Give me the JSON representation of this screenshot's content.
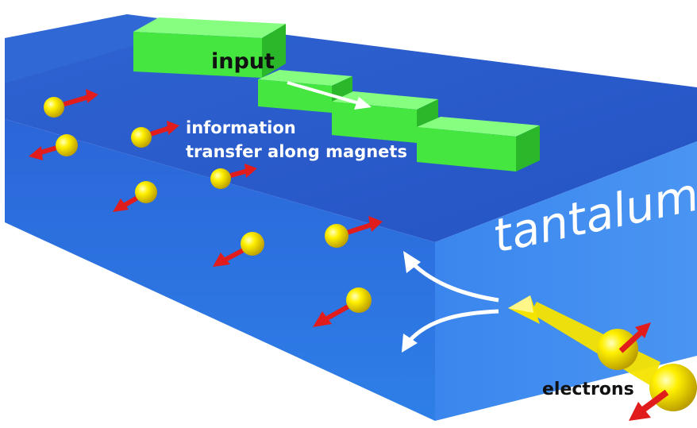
{
  "labels": {
    "input": "input",
    "information_line1": "information",
    "information_line2": "transfer along magnets",
    "material": "tantalum",
    "particles": "electrons"
  },
  "colors": {
    "slab_top": "#2a5fd0",
    "slab_front": "#2d78e6",
    "slab_side": "#3e8cf0",
    "magnet": "#4df04a",
    "electron": "#f5e400",
    "spin_arrow": "#e01c1c",
    "flow_arrow": "#ffffff"
  }
}
